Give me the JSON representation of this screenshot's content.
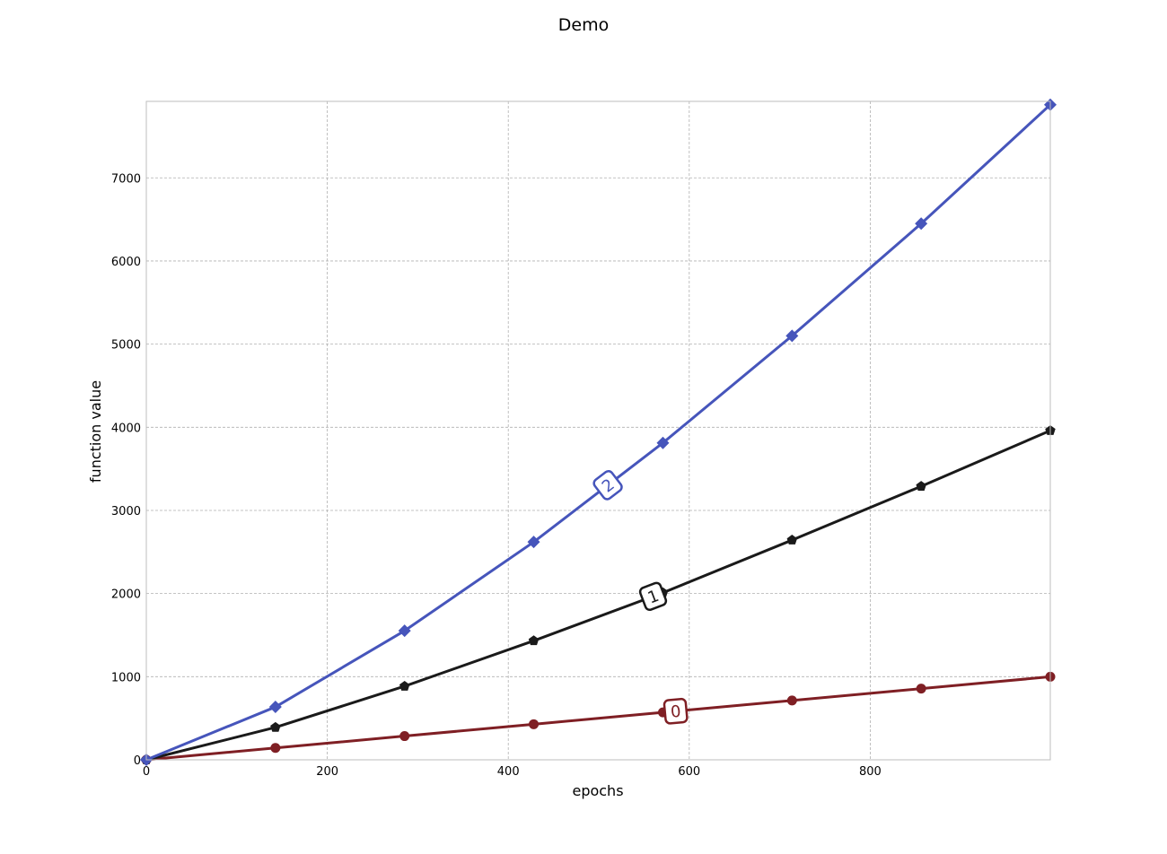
{
  "chart_data": {
    "type": "line",
    "title": "Demo",
    "xlabel": "epochs",
    "ylabel": "function value",
    "xlim": [
      0,
      999
    ],
    "ylim": [
      0,
      7920
    ],
    "xticks": [
      0,
      200,
      400,
      600,
      800
    ],
    "yticks": [
      0,
      1000,
      2000,
      3000,
      4000,
      5000,
      6000,
      7000
    ],
    "grid": true,
    "legend": "none (inline labels on lines)",
    "series": [
      {
        "name": "0",
        "color": "#7f1f24",
        "marker": "circle",
        "x": [
          0,
          142.7,
          285.4,
          428.1,
          570.9,
          713.6,
          856.3,
          999
        ],
        "y": [
          0,
          142.7,
          285.4,
          428.1,
          570.9,
          713.6,
          856.3,
          999
        ],
        "label_at_x": 585
      },
      {
        "name": "1",
        "color": "#1a1a1a",
        "marker": "pentagon",
        "x": [
          0,
          142.7,
          285.4,
          428.1,
          570.9,
          713.6,
          856.3,
          999
        ],
        "y": [
          0,
          390,
          885,
          1432,
          2010,
          2643,
          3290,
          3960
        ],
        "label_at_x": 560
      },
      {
        "name": "2",
        "color": "#4655bb",
        "marker": "diamond",
        "x": [
          0,
          142.7,
          285.4,
          428.1,
          570.9,
          713.6,
          856.3,
          999
        ],
        "y": [
          0,
          636,
          1552,
          2620,
          3812,
          5100,
          6450,
          7880
        ],
        "label_at_x": 510
      }
    ]
  }
}
